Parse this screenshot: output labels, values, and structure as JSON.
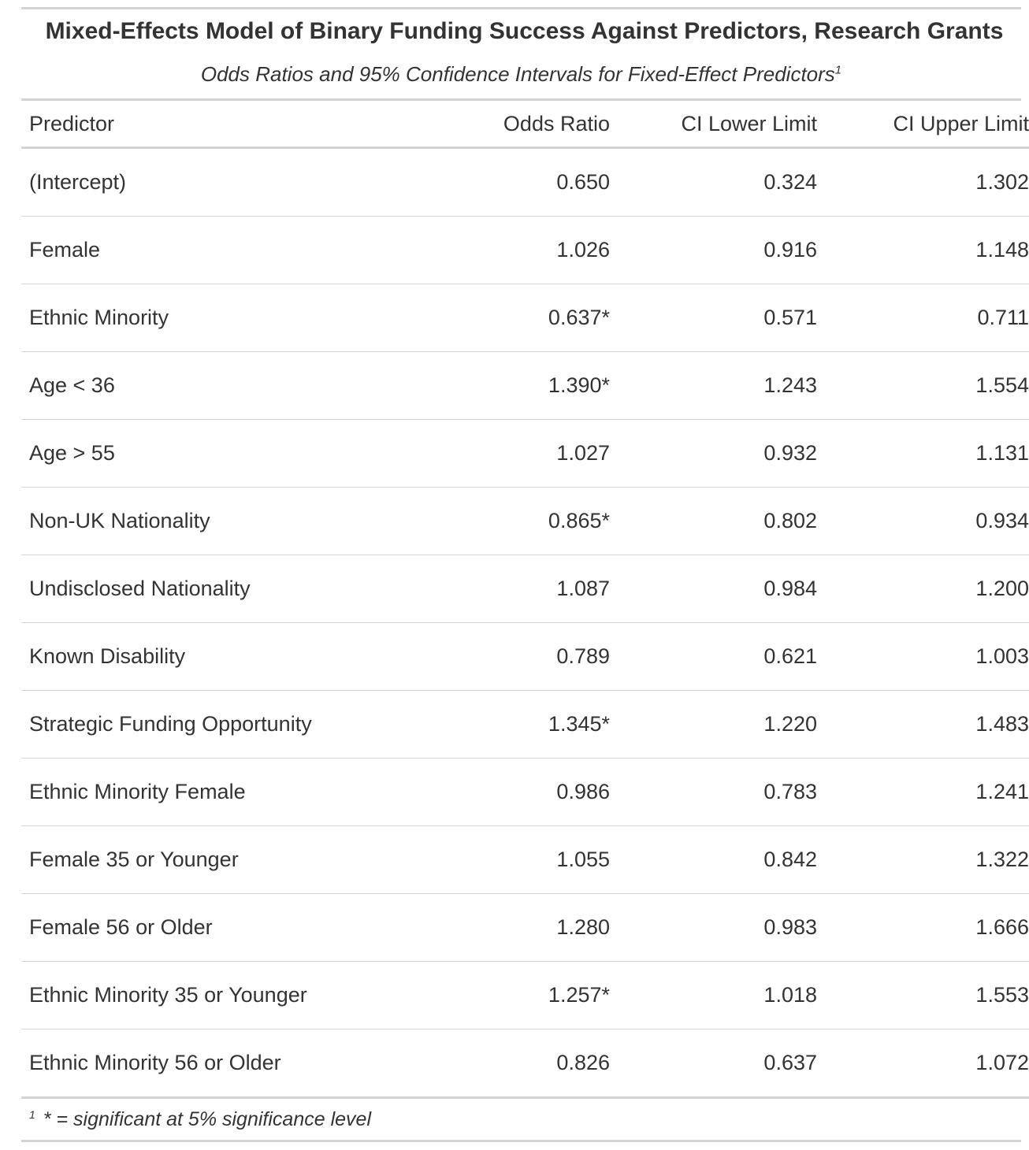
{
  "title": "Mixed-Effects Model of Binary Funding Success Against Predictors, Research Grants",
  "subtitle": "Odds Ratios and 95% Confidence Intervals for Fixed-Effect Predictors",
  "subtitle_footnote_mark": "1",
  "columns": {
    "predictor": "Predictor",
    "odds_ratio": "Odds Ratio",
    "ci_lower": "CI Lower Limit",
    "ci_upper": "CI Upper Limit"
  },
  "rows": [
    {
      "predictor": "(Intercept)",
      "odds_ratio": "0.650",
      "ci_lower": "0.324",
      "ci_upper": "1.302"
    },
    {
      "predictor": "Female",
      "odds_ratio": "1.026",
      "ci_lower": "0.916",
      "ci_upper": "1.148"
    },
    {
      "predictor": "Ethnic Minority",
      "odds_ratio": "0.637*",
      "ci_lower": "0.571",
      "ci_upper": "0.711"
    },
    {
      "predictor": "Age < 36",
      "odds_ratio": "1.390*",
      "ci_lower": "1.243",
      "ci_upper": "1.554"
    },
    {
      "predictor": "Age > 55",
      "odds_ratio": "1.027",
      "ci_lower": "0.932",
      "ci_upper": "1.131"
    },
    {
      "predictor": "Non-UK Nationality",
      "odds_ratio": "0.865*",
      "ci_lower": "0.802",
      "ci_upper": "0.934"
    },
    {
      "predictor": "Undisclosed Nationality",
      "odds_ratio": "1.087",
      "ci_lower": "0.984",
      "ci_upper": "1.200"
    },
    {
      "predictor": "Known Disability",
      "odds_ratio": "0.789",
      "ci_lower": "0.621",
      "ci_upper": "1.003"
    },
    {
      "predictor": "Strategic Funding Opportunity",
      "odds_ratio": "1.345*",
      "ci_lower": "1.220",
      "ci_upper": "1.483"
    },
    {
      "predictor": "Ethnic Minority Female",
      "odds_ratio": "0.986",
      "ci_lower": "0.783",
      "ci_upper": "1.241"
    },
    {
      "predictor": "Female 35 or Younger",
      "odds_ratio": "1.055",
      "ci_lower": "0.842",
      "ci_upper": "1.322"
    },
    {
      "predictor": "Female 56 or Older",
      "odds_ratio": "1.280",
      "ci_lower": "0.983",
      "ci_upper": "1.666"
    },
    {
      "predictor": "Ethnic Minority 35 or Younger",
      "odds_ratio": "1.257*",
      "ci_lower": "1.018",
      "ci_upper": "1.553"
    },
    {
      "predictor": "Ethnic Minority 56 or Older",
      "odds_ratio": "0.826",
      "ci_lower": "0.637",
      "ci_upper": "1.072"
    }
  ],
  "footnote": {
    "mark": "1",
    "text": "* = significant at 5% significance level"
  },
  "colors": {
    "text": "#333333",
    "rule": "#d3d3d3",
    "background": "#ffffff"
  }
}
